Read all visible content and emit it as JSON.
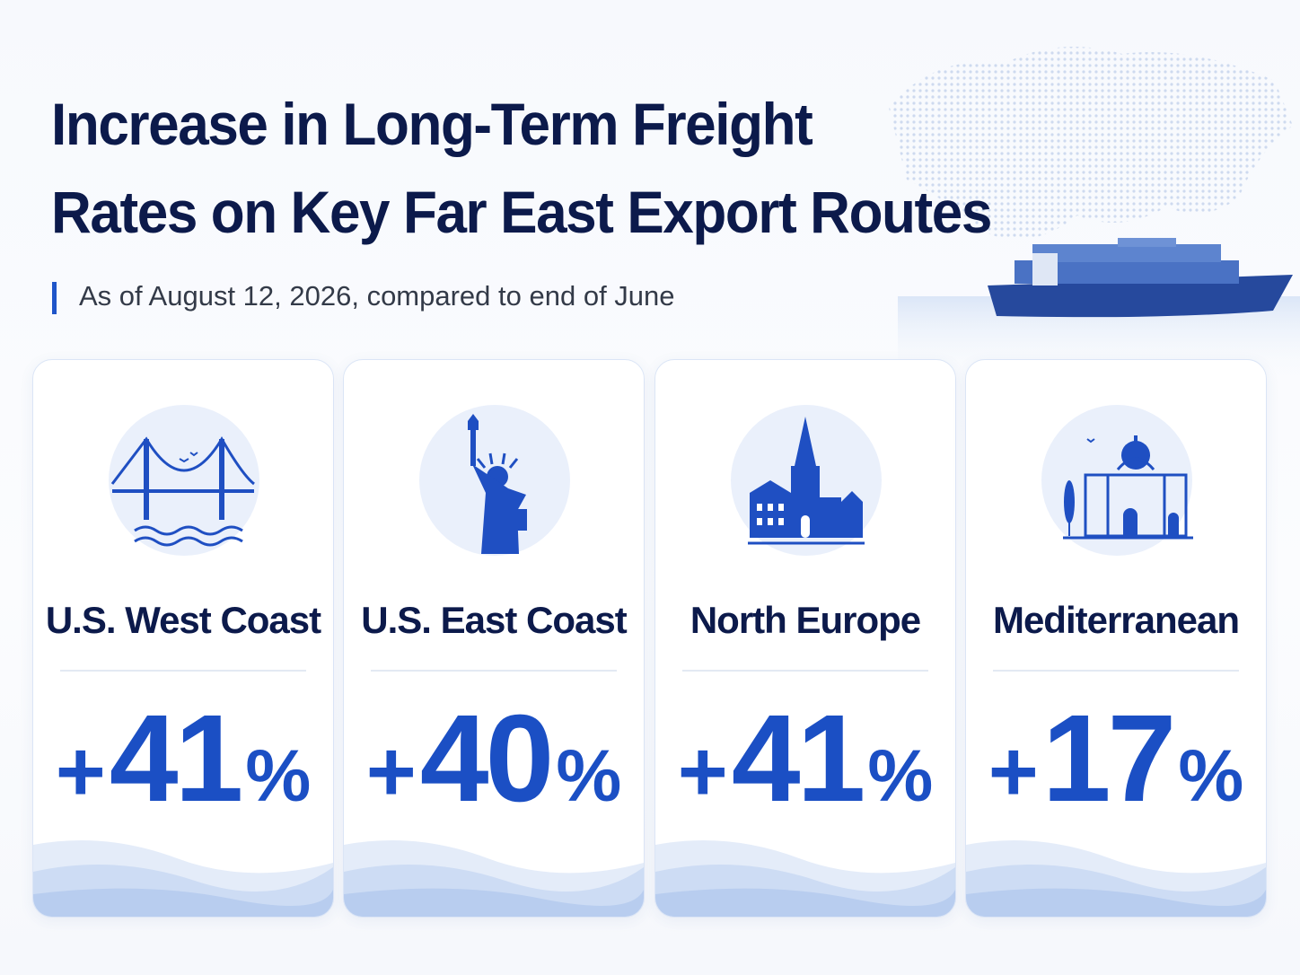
{
  "header": {
    "title_line1": "Increase in Long-Term Freight",
    "title_line2": "Rates on Key Far East Export Routes",
    "subtitle": "As of August 12, 2026, compared to end of June"
  },
  "cards": [
    {
      "region": "U.S. West Coast",
      "sign": "+",
      "number": "41",
      "unit": "%"
    },
    {
      "region": "U.S. East Coast",
      "sign": "+",
      "number": "40",
      "unit": "%"
    },
    {
      "region": "North Europe",
      "sign": "+",
      "number": "41",
      "unit": "%"
    },
    {
      "region": "Mediterranean",
      "sign": "+",
      "number": "17",
      "unit": "%"
    }
  ]
}
